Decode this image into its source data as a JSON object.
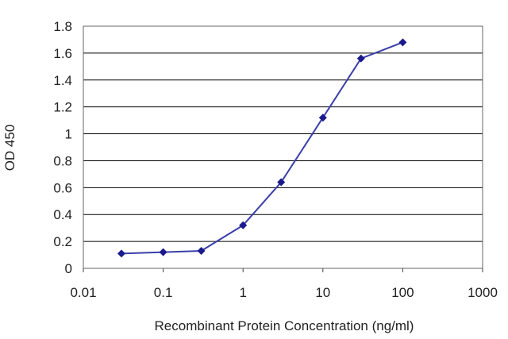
{
  "chart_data": {
    "type": "line",
    "xlabel": "Recombinant Protein Concentration (ng/ml)",
    "ylabel": "OD 450",
    "xscale": "log",
    "xlim": [
      0.01,
      1000
    ],
    "ylim": [
      0,
      1.8
    ],
    "grid": "horizontal",
    "x_ticks": [
      "0.01",
      "0.1",
      "1",
      "10",
      "100",
      "1000"
    ],
    "y_ticks": [
      "0",
      "0.2",
      "0.4",
      "0.6",
      "0.8",
      "1",
      "1.2",
      "1.4",
      "1.6",
      "1.8"
    ],
    "series": [
      {
        "x": [
          0.03,
          0.1,
          0.3,
          1,
          3,
          10,
          30,
          100
        ],
        "y": [
          0.11,
          0.12,
          0.13,
          0.32,
          0.64,
          1.12,
          1.56,
          1.68
        ]
      }
    ],
    "colors": {
      "line": "#3a3fa8",
      "marker": "#1a1a8c",
      "grid": "#000000"
    }
  }
}
